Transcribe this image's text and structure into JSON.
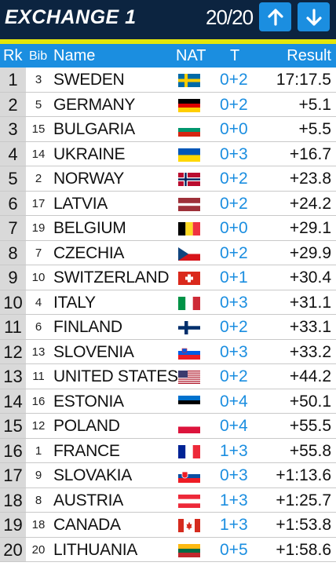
{
  "header": {
    "title": "EXCHANGE 1",
    "counter": "20/20"
  },
  "columns": {
    "rank": "Rk",
    "bib": "Bib",
    "name": "Name",
    "nat": "NAT",
    "t": "T",
    "result": "Result"
  },
  "rows": [
    {
      "rank": "1",
      "bib": "3",
      "name": "SWEDEN",
      "penalty": "0+2",
      "result": "17:17.5",
      "flag": "swe"
    },
    {
      "rank": "2",
      "bib": "5",
      "name": "GERMANY",
      "penalty": "0+2",
      "result": "+5.1",
      "flag": "ger"
    },
    {
      "rank": "3",
      "bib": "15",
      "name": "BULGARIA",
      "penalty": "0+0",
      "result": "+5.5",
      "flag": "bul"
    },
    {
      "rank": "4",
      "bib": "14",
      "name": "UKRAINE",
      "penalty": "0+3",
      "result": "+16.7",
      "flag": "ukr"
    },
    {
      "rank": "5",
      "bib": "2",
      "name": "NORWAY",
      "penalty": "0+2",
      "result": "+23.8",
      "flag": "nor"
    },
    {
      "rank": "6",
      "bib": "17",
      "name": "LATVIA",
      "penalty": "0+2",
      "result": "+24.2",
      "flag": "lat"
    },
    {
      "rank": "7",
      "bib": "19",
      "name": "BELGIUM",
      "penalty": "0+0",
      "result": "+29.1",
      "flag": "bel"
    },
    {
      "rank": "8",
      "bib": "7",
      "name": "CZECHIA",
      "penalty": "0+2",
      "result": "+29.9",
      "flag": "cze"
    },
    {
      "rank": "9",
      "bib": "10",
      "name": "SWITZERLAND",
      "penalty": "0+1",
      "result": "+30.4",
      "flag": "sui"
    },
    {
      "rank": "10",
      "bib": "4",
      "name": "ITALY",
      "penalty": "0+3",
      "result": "+31.1",
      "flag": "ita"
    },
    {
      "rank": "11",
      "bib": "6",
      "name": "FINLAND",
      "penalty": "0+2",
      "result": "+33.1",
      "flag": "fin"
    },
    {
      "rank": "12",
      "bib": "13",
      "name": "SLOVENIA",
      "penalty": "0+3",
      "result": "+33.2",
      "flag": "slo"
    },
    {
      "rank": "13",
      "bib": "11",
      "name": "UNITED STATES",
      "penalty": "0+2",
      "result": "+44.2",
      "flag": "usa"
    },
    {
      "rank": "14",
      "bib": "16",
      "name": "ESTONIA",
      "penalty": "0+4",
      "result": "+50.1",
      "flag": "est"
    },
    {
      "rank": "15",
      "bib": "12",
      "name": "POLAND",
      "penalty": "0+4",
      "result": "+55.5",
      "flag": "pol"
    },
    {
      "rank": "16",
      "bib": "1",
      "name": "FRANCE",
      "penalty": "1+3",
      "result": "+55.8",
      "flag": "fra"
    },
    {
      "rank": "17",
      "bib": "9",
      "name": "SLOVAKIA",
      "penalty": "0+3",
      "result": "+1:13.6",
      "flag": "svk"
    },
    {
      "rank": "18",
      "bib": "8",
      "name": "AUSTRIA",
      "penalty": "1+3",
      "result": "+1:25.7",
      "flag": "aut"
    },
    {
      "rank": "19",
      "bib": "18",
      "name": "CANADA",
      "penalty": "1+3",
      "result": "+1:53.8",
      "flag": "can"
    },
    {
      "rank": "20",
      "bib": "20",
      "name": "LITHUANIA",
      "penalty": "0+5",
      "result": "+1:58.6",
      "flag": "ltu"
    }
  ],
  "colors": {
    "header_bg": "#0c2440",
    "accent": "#e4e60a",
    "blue": "#1b8ee0",
    "rank_bg": "#d9d9d9"
  }
}
